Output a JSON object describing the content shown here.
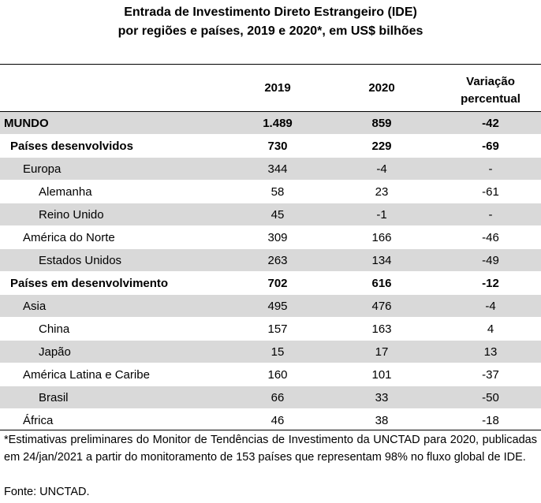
{
  "title": {
    "line1": "Entrada de Investimento Direto Estrangeiro (IDE)",
    "line2": "por regiões e países, 2019 e 2020*, em US$ bilhões"
  },
  "table": {
    "headers": {
      "col_2019": "2019",
      "col_2020": "2020",
      "col_var_line1": "Variação",
      "col_var_line2": "percentual"
    },
    "rows": [
      {
        "label": "MUNDO",
        "v2019": "1.489",
        "v2020": "859",
        "var": "-42"
      },
      {
        "label": "Países desenvolvidos",
        "v2019": "730",
        "v2020": "229",
        "var": "-69"
      },
      {
        "label": "Europa",
        "v2019": "344",
        "v2020": "-4",
        "var": "-"
      },
      {
        "label": "Alemanha",
        "v2019": "58",
        "v2020": "23",
        "var": "-61"
      },
      {
        "label": "Reino Unido",
        "v2019": "45",
        "v2020": "-1",
        "var": "-"
      },
      {
        "label": "América do Norte",
        "v2019": "309",
        "v2020": "166",
        "var": "-46"
      },
      {
        "label": "Estados Unidos",
        "v2019": "263",
        "v2020": "134",
        "var": "-49"
      },
      {
        "label": "Países em desenvolvimento",
        "v2019": "702",
        "v2020": "616",
        "var": "-12"
      },
      {
        "label": "Asia",
        "v2019": "495",
        "v2020": "476",
        "var": "-4"
      },
      {
        "label": "China",
        "v2019": "157",
        "v2020": "163",
        "var": "4"
      },
      {
        "label": "Japão",
        "v2019": "15",
        "v2020": "17",
        "var": "13"
      },
      {
        "label": "América Latina e Caribe",
        "v2019": "160",
        "v2020": "101",
        "var": "-37"
      },
      {
        "label": "Brasil",
        "v2019": "66",
        "v2020": "33",
        "var": "-50"
      },
      {
        "label": "África",
        "v2019": "46",
        "v2020": "38",
        "var": "-18"
      }
    ]
  },
  "footnote": "*Estimativas preliminares do Monitor de Tendências de Investimento da UNCTAD para 2020, publicadas em 24/jan/2021 a partir do monitoramento de 153 países que representam 98% no fluxo global de IDE.",
  "source": "Fonte: UNCTAD.",
  "colors": {
    "shade": "#d9d9d9",
    "rule": "#000000"
  }
}
